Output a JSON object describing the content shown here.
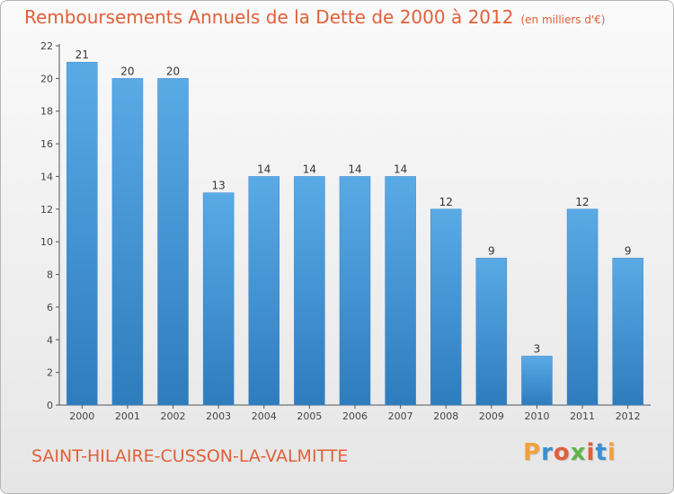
{
  "chart_data": {
    "type": "bar",
    "title": "Remboursements Annuels de la Dette de 2000 à 2012",
    "subtitle": "(en milliers d'€)",
    "xlabel": "",
    "ylabel": "",
    "categories": [
      "2000",
      "2001",
      "2002",
      "2003",
      "2004",
      "2005",
      "2006",
      "2007",
      "2008",
      "2009",
      "2010",
      "2011",
      "2012"
    ],
    "values": [
      21,
      20,
      20,
      13,
      14,
      14,
      14,
      14,
      12,
      9,
      3,
      12,
      9
    ],
    "ylim": [
      0,
      22
    ],
    "yticks": [
      0,
      2,
      4,
      6,
      8,
      10,
      12,
      14,
      16,
      18,
      20,
      22
    ],
    "grid": false,
    "bar_color": "#4d9fdf",
    "bar_color_top": "#5aaae6",
    "bar_color_bottom": "#2f7cbd"
  },
  "footer": {
    "commune": "SAINT-HILAIRE-CUSSON-LA-VALMITTE",
    "logo_letters": [
      "P",
      "r",
      "o",
      "x",
      "i",
      "t",
      "i"
    ],
    "logo_colors": [
      "#f0a23a",
      "#3a8fd0",
      "#e0603a",
      "#5fb64a",
      "#e0603a",
      "#3a8fd0",
      "#f0a23a"
    ]
  }
}
